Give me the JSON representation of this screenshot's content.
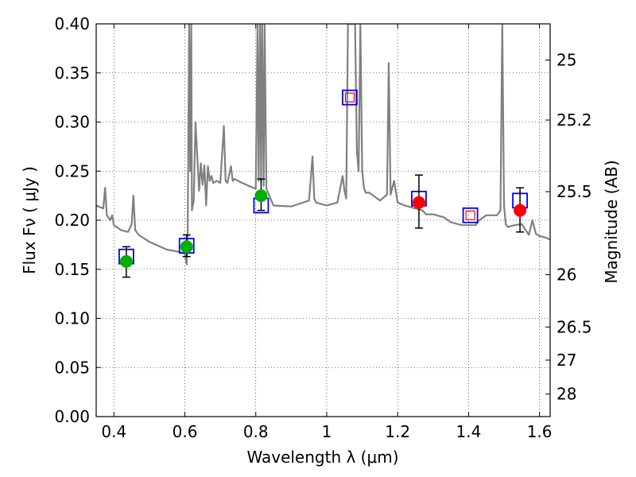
{
  "chart_data": {
    "type": "scatter",
    "xlabel": "Wavelength  λ (μm)",
    "ylabel": "Flux  Fν  ( μJy )",
    "ylabel_right": "Magnitude (AB)",
    "xlim": [
      0.35,
      1.63
    ],
    "ylim": [
      0.0,
      0.4
    ],
    "grid": true,
    "x_ticks": [
      0.4,
      0.6,
      0.8,
      1.0,
      1.2,
      1.4,
      1.6
    ],
    "x_tick_labels": [
      "0.4",
      "0.6",
      "0.8",
      "1",
      "1.2",
      "1.4",
      "1.6"
    ],
    "y_ticks": [
      0.0,
      0.05,
      0.1,
      0.15,
      0.2,
      0.25,
      0.3,
      0.35,
      0.4
    ],
    "y_tick_labels": [
      "0.00",
      "0.05",
      "0.10",
      "0.15",
      "0.20",
      "0.25",
      "0.30",
      "0.35",
      "0.40"
    ],
    "right_ticks": [
      {
        "flux": 0.3631,
        "label": "25"
      },
      {
        "flux": 0.302,
        "label": "25.2"
      },
      {
        "flux": 0.2291,
        "label": "25.5"
      },
      {
        "flux": 0.1445,
        "label": "26"
      },
      {
        "flux": 0.0912,
        "label": "26.5"
      },
      {
        "flux": 0.0575,
        "label": "27"
      },
      {
        "flux": 0.0229,
        "label": "28"
      }
    ],
    "series": [
      {
        "style": "line",
        "color": "#808080",
        "x": [
          0.35,
          0.37,
          0.375,
          0.38,
          0.39,
          0.395,
          0.4,
          0.42,
          0.44,
          0.45,
          0.455,
          0.46,
          0.47,
          0.5,
          0.55,
          0.58,
          0.6,
          0.605,
          0.608,
          0.612,
          0.615,
          0.618,
          0.62,
          0.625,
          0.63,
          0.64,
          0.645,
          0.65,
          0.655,
          0.66,
          0.665,
          0.67,
          0.675,
          0.68,
          0.69,
          0.7,
          0.71,
          0.715,
          0.72,
          0.73,
          0.735,
          0.74,
          0.75,
          0.78,
          0.8,
          0.805,
          0.808,
          0.812,
          0.815,
          0.818,
          0.822,
          0.825,
          0.83,
          0.85,
          0.9,
          0.95,
          0.96,
          0.965,
          0.97,
          1.0,
          1.03,
          1.045,
          1.05,
          1.055,
          1.06,
          1.07,
          1.08,
          1.085,
          1.09,
          1.095,
          1.1,
          1.105,
          1.11,
          1.12,
          1.15,
          1.17,
          1.175,
          1.18,
          1.19,
          1.2,
          1.22,
          1.25,
          1.27,
          1.28,
          1.3,
          1.33,
          1.35,
          1.38,
          1.4,
          1.42,
          1.43,
          1.45,
          1.48,
          1.49,
          1.495,
          1.5,
          1.505,
          1.51,
          1.53,
          1.55,
          1.57,
          1.58,
          1.59,
          1.6,
          1.62,
          1.63
        ],
        "values": [
          0.215,
          0.212,
          0.233,
          0.205,
          0.2,
          0.205,
          0.195,
          0.19,
          0.188,
          0.196,
          0.225,
          0.19,
          0.185,
          0.178,
          0.17,
          0.168,
          0.166,
          0.155,
          0.19,
          0.4,
          0.25,
          0.4,
          0.21,
          0.22,
          0.3,
          0.23,
          0.258,
          0.236,
          0.256,
          0.215,
          0.255,
          0.24,
          0.245,
          0.238,
          0.24,
          0.238,
          0.296,
          0.24,
          0.238,
          0.255,
          0.24,
          0.242,
          0.24,
          0.235,
          0.232,
          0.4,
          0.24,
          0.4,
          0.24,
          0.4,
          0.235,
          0.4,
          0.232,
          0.215,
          0.214,
          0.22,
          0.265,
          0.222,
          0.218,
          0.215,
          0.218,
          0.245,
          0.23,
          0.222,
          0.4,
          0.4,
          0.4,
          0.27,
          0.25,
          0.4,
          0.25,
          0.233,
          0.228,
          0.228,
          0.22,
          0.226,
          0.36,
          0.226,
          0.24,
          0.218,
          0.215,
          0.212,
          0.21,
          0.206,
          0.206,
          0.203,
          0.198,
          0.195,
          0.195,
          0.195,
          0.2,
          0.205,
          0.205,
          0.21,
          0.4,
          0.215,
          0.196,
          0.193,
          0.195,
          0.196,
          0.185,
          0.2,
          0.186,
          0.184,
          0.182,
          0.18
        ]
      },
      {
        "style": "open-square",
        "color": "#0000ff",
        "x": [
          0.435,
          0.605,
          0.815,
          1.065,
          1.26,
          1.405,
          1.545
        ],
        "values": [
          0.163,
          0.174,
          0.215,
          0.325,
          0.222,
          0.205,
          0.22
        ]
      },
      {
        "style": "open-square-small",
        "color": "#ff0000",
        "x": [
          1.065,
          1.405
        ],
        "values": [
          0.325,
          0.205
        ]
      },
      {
        "style": "errorbar-circle",
        "color": "#00b000",
        "x": [
          0.435,
          0.605,
          0.815
        ],
        "values": [
          0.158,
          0.173,
          0.225
        ],
        "err_low": [
          0.142,
          0.163,
          0.21
        ],
        "err_high": [
          0.173,
          0.185,
          0.242
        ]
      },
      {
        "style": "errorbar-circle",
        "color": "#ff0000",
        "x": [
          1.26,
          1.545
        ],
        "values": [
          0.218,
          0.21
        ],
        "err_low": [
          0.192,
          0.188
        ],
        "err_high": [
          0.246,
          0.233
        ]
      }
    ]
  }
}
